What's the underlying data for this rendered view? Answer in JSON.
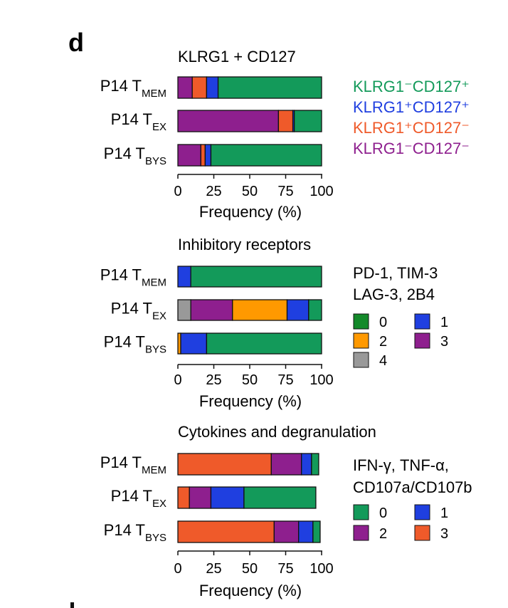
{
  "panel_letter": "d",
  "chart_data": [
    {
      "type": "bar",
      "orientation": "horizontal",
      "stacked": true,
      "title": "KLRG1 + CD127",
      "xlabel": "Frequency (%)",
      "xlim": [
        0,
        100
      ],
      "xticks": [
        "0",
        "25",
        "50",
        "75",
        "100"
      ],
      "rows": [
        {
          "base": "P14 T",
          "sub": "MEM"
        },
        {
          "base": "P14 T",
          "sub": "EX"
        },
        {
          "base": "P14 T",
          "sub": "BYS"
        }
      ],
      "series": [
        {
          "name": "KLRG1⁻CD127⁻",
          "color": "#8e1f8e",
          "values": [
            10,
            70,
            16
          ]
        },
        {
          "name": "KLRG1⁺CD127⁻",
          "color": "#ef5a2a",
          "values": [
            10,
            10,
            3
          ]
        },
        {
          "name": "KLRG1⁺CD127⁺",
          "color": "#1f3fe0",
          "values": [
            8,
            1,
            4
          ]
        },
        {
          "name": "KLRG1⁻CD127⁺",
          "color": "#139a5a",
          "values": [
            72,
            19,
            77
          ]
        }
      ],
      "legend": {
        "style": "text",
        "placement": "right",
        "items": [
          {
            "text": "KLRG1⁻CD127⁺",
            "color": "#139a5a"
          },
          {
            "text": "KLRG1⁺CD127⁺",
            "color": "#1f3fe0"
          },
          {
            "text": "KLRG1⁺CD127⁻",
            "color": "#ef5a2a"
          },
          {
            "text": "KLRG1⁻CD127⁻",
            "color": "#8e1f8e"
          }
        ]
      }
    },
    {
      "type": "bar",
      "orientation": "horizontal",
      "stacked": true,
      "title": "Inhibitory receptors",
      "xlabel": "Frequency (%)",
      "xlim": [
        0,
        100
      ],
      "xticks": [
        "0",
        "25",
        "50",
        "75",
        "100"
      ],
      "rows": [
        {
          "base": "P14 T",
          "sub": "MEM"
        },
        {
          "base": "P14 T",
          "sub": "EX"
        },
        {
          "base": "P14 T",
          "sub": "BYS"
        }
      ],
      "series": [
        {
          "name": "4",
          "color": "#999999",
          "values": [
            0,
            9,
            0
          ]
        },
        {
          "name": "3",
          "color": "#8e1f8e",
          "values": [
            0,
            29,
            0
          ]
        },
        {
          "name": "2",
          "color": "#ff9900",
          "values": [
            0,
            38,
            2
          ]
        },
        {
          "name": "1",
          "color": "#1f3fe0",
          "values": [
            9,
            15,
            18
          ]
        },
        {
          "name": "0",
          "color": "#139a5a",
          "values": [
            91,
            9,
            80
          ]
        }
      ],
      "legend": {
        "style": "boxes",
        "placement": "right",
        "heading": [
          "PD-1, TIM-3",
          "LAG-3, 2B4"
        ],
        "items": [
          {
            "label": "0",
            "color": "#138a2a"
          },
          {
            "label": "1",
            "color": "#1f3fe0"
          },
          {
            "label": "2",
            "color": "#ff9900"
          },
          {
            "label": "3",
            "color": "#8e1f8e"
          },
          {
            "label": "4",
            "color": "#999999"
          }
        ]
      }
    },
    {
      "type": "bar",
      "orientation": "horizontal",
      "stacked": true,
      "title": "Cytokines and degranulation",
      "xlabel": "Frequency (%)",
      "xlim": [
        0,
        100
      ],
      "xticks": [
        "0",
        "25",
        "50",
        "75",
        "100"
      ],
      "rows": [
        {
          "base": "P14 T",
          "sub": "MEM"
        },
        {
          "base": "P14 T",
          "sub": "EX"
        },
        {
          "base": "P14 T",
          "sub": "BYS"
        }
      ],
      "series": [
        {
          "name": "3",
          "color": "#ef5a2a",
          "values": [
            65,
            8,
            67
          ]
        },
        {
          "name": "2",
          "color": "#8e1f8e",
          "values": [
            21,
            15,
            17
          ]
        },
        {
          "name": "1",
          "color": "#1f3fe0",
          "values": [
            7,
            23,
            10
          ]
        },
        {
          "name": "0",
          "color": "#139a5a",
          "values": [
            5,
            50,
            5
          ]
        }
      ],
      "legend": {
        "style": "boxes",
        "placement": "right",
        "heading": [
          "IFN-γ, TNF-α,",
          "CD107a/CD107b"
        ],
        "items": [
          {
            "label": "0",
            "color": "#139a5a"
          },
          {
            "label": "1",
            "color": "#1f3fe0"
          },
          {
            "label": "2",
            "color": "#8e1f8e"
          },
          {
            "label": "3",
            "color": "#ef5a2a"
          }
        ]
      }
    }
  ]
}
